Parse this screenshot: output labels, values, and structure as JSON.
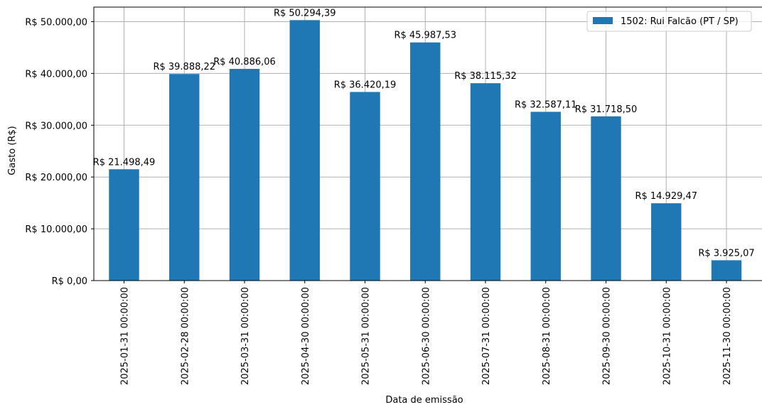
{
  "chart_data": {
    "type": "bar",
    "title": "",
    "xlabel": "Data de emissão",
    "ylabel": "Gasto (R$)",
    "categories": [
      "2025-01-31 00:00:00",
      "2025-02-28 00:00:00",
      "2025-03-31 00:00:00",
      "2025-04-30 00:00:00",
      "2025-05-31 00:00:00",
      "2025-06-30 00:00:00",
      "2025-07-31 00:00:00",
      "2025-08-31 00:00:00",
      "2025-09-30 00:00:00",
      "2025-10-31 00:00:00",
      "2025-11-30 00:00:00"
    ],
    "series": [
      {
        "name": "1502: Rui Falcão (PT / SP)",
        "color": "#1f77b4",
        "values": [
          21498.49,
          39888.22,
          40886.06,
          50294.39,
          36420.19,
          45987.53,
          38115.32,
          32587.11,
          31718.5,
          14929.47,
          3925.07
        ],
        "labels": [
          "R$ 21.498,49",
          "R$ 39.888,22",
          "R$ 40.886,06",
          "R$ 50.294,39",
          "R$ 36.420,19",
          "R$ 45.987,53",
          "R$ 38.115,32",
          "R$ 32.587,11",
          "R$ 31.718,50",
          "R$ 14.929,47",
          "R$ 3.925,07"
        ]
      }
    ],
    "yticks": [
      0,
      10000,
      20000,
      30000,
      40000,
      50000
    ],
    "ytick_labels": [
      "R$ 0,00",
      "R$ 10.000,00",
      "R$ 20.000,00",
      "R$ 30.000,00",
      "R$ 40.000,00",
      "R$ 50.000,00"
    ],
    "ylim": [
      0,
      52809.11
    ],
    "grid": true,
    "legend": "top-right"
  }
}
